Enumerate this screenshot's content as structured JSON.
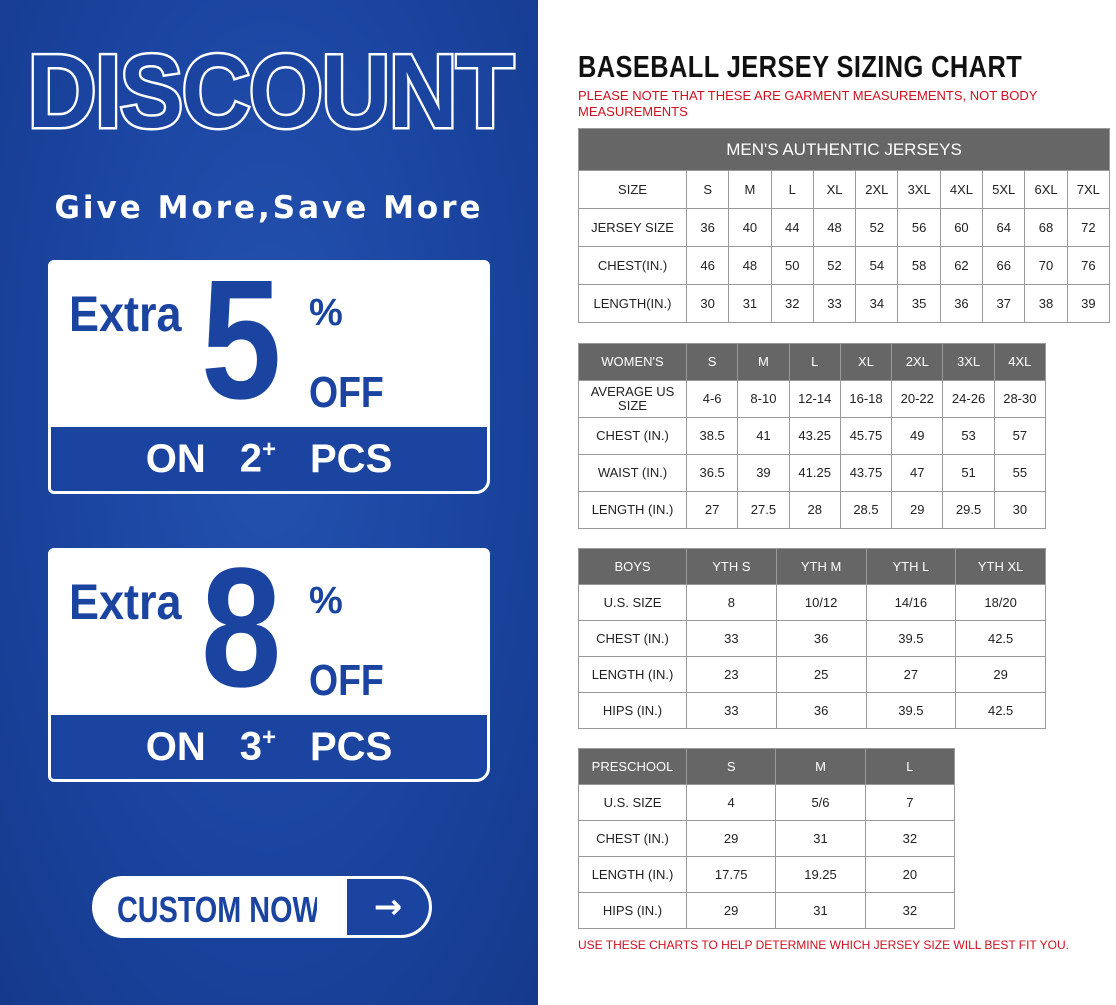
{
  "promo": {
    "headline": "DISCOUNT",
    "tagline": "Give More,Save More",
    "offers": [
      {
        "extra": "Extra",
        "number": "5",
        "percent": "%",
        "off": "OFF",
        "on": "ON",
        "qty": "2",
        "plus": "+",
        "pcs": "PCS"
      },
      {
        "extra": "Extra",
        "number": "8",
        "percent": "%",
        "off": "OFF",
        "on": "ON",
        "qty": "3",
        "plus": "+",
        "pcs": "PCS"
      }
    ],
    "cta": "CUSTOM NOW",
    "cta_icon": "arrow-right-icon",
    "brand_color": "#1a44a0"
  },
  "chart": {
    "title": "BASEBALL JERSEY SIZING CHART",
    "note": "PLEASE NOTE THAT THESE ARE GARMENT MEASUREMENTS, NOT BODY MEASUREMENTS",
    "footer": "USE THESE CHARTS TO HELP DETERMINE WHICH JERSEY SIZE WILL BEST FIT YOU.",
    "note_color": "#d01020",
    "header_color": "#666666",
    "tables": [
      {
        "id": "men",
        "caption": "MEN'S AUTHENTIC JERSEYS",
        "header_gray": false,
        "header": [
          "SIZE",
          "S",
          "M",
          "L",
          "XL",
          "2XL",
          "3XL",
          "4XL",
          "5XL",
          "6XL",
          "7XL"
        ],
        "rows": [
          [
            "JERSEY SIZE",
            "36",
            "40",
            "44",
            "48",
            "52",
            "56",
            "60",
            "64",
            "68",
            "72"
          ],
          [
            "CHEST(IN.)",
            "46",
            "48",
            "50",
            "52",
            "54",
            "58",
            "62",
            "66",
            "70",
            "76"
          ],
          [
            "LENGTH(IN.)",
            "30",
            "31",
            "32",
            "33",
            "34",
            "35",
            "36",
            "37",
            "38",
            "39"
          ]
        ]
      },
      {
        "id": "women",
        "header_gray": true,
        "header": [
          "WOMEN'S",
          "S",
          "M",
          "L",
          "XL",
          "2XL",
          "3XL",
          "4XL"
        ],
        "rows": [
          [
            "AVERAGE US SIZE",
            "4-6",
            "8-10",
            "12-14",
            "16-18",
            "20-22",
            "24-26",
            "28-30"
          ],
          [
            "CHEST (IN.)",
            "38.5",
            "41",
            "43.25",
            "45.75",
            "49",
            "53",
            "57"
          ],
          [
            "WAIST (IN.)",
            "36.5",
            "39",
            "41.25",
            "43.75",
            "47",
            "51",
            "55"
          ],
          [
            "LENGTH (IN.)",
            "27",
            "27.5",
            "28",
            "28.5",
            "29",
            "29.5",
            "30"
          ]
        ]
      },
      {
        "id": "boys",
        "header_gray": true,
        "header": [
          "BOYS",
          "YTH S",
          "YTH M",
          "YTH L",
          "YTH XL"
        ],
        "rows": [
          [
            "U.S. SIZE",
            "8",
            "10/12",
            "14/16",
            "18/20"
          ],
          [
            "CHEST (IN.)",
            "33",
            "36",
            "39.5",
            "42.5"
          ],
          [
            "LENGTH (IN.)",
            "23",
            "25",
            "27",
            "29"
          ],
          [
            "HIPS (IN.)",
            "33",
            "36",
            "39.5",
            "42.5"
          ]
        ]
      },
      {
        "id": "preschool",
        "header_gray": true,
        "header": [
          "PRESCHOOL",
          "S",
          "M",
          "L"
        ],
        "rows": [
          [
            "U.S. SIZE",
            "4",
            "5/6",
            "7"
          ],
          [
            "CHEST (IN.)",
            "29",
            "31",
            "32"
          ],
          [
            "LENGTH (IN.)",
            "17.75",
            "19.25",
            "20"
          ],
          [
            "HIPS (IN.)",
            "29",
            "31",
            "32"
          ]
        ]
      }
    ]
  }
}
